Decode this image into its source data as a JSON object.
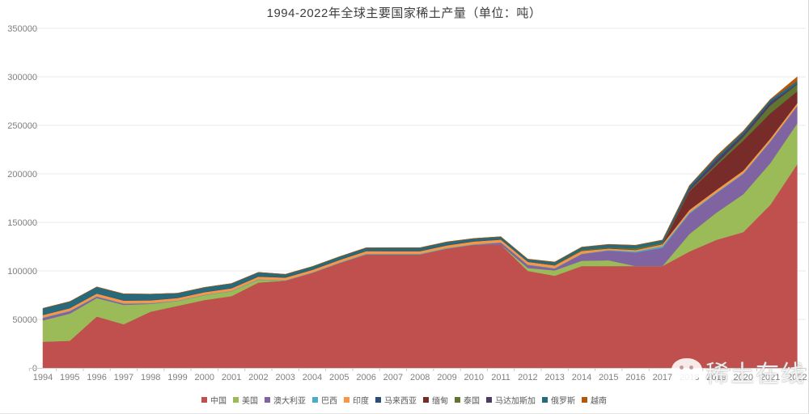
{
  "watermark": {
    "text": "稀土在线",
    "logo": "wechat-icon"
  },
  "chart_data": {
    "type": "area",
    "stacked": true,
    "title": "1994-2022年全球主要国家稀土产量（单位：吨）",
    "unit": "吨",
    "xlabel": "",
    "ylabel": "",
    "ylim": [
      0,
      350000
    ],
    "yticks": [
      0,
      50000,
      100000,
      150000,
      200000,
      250000,
      300000,
      350000
    ],
    "grid": true,
    "legend_position": "bottom",
    "categories": [
      1994,
      1995,
      1996,
      1997,
      1998,
      1999,
      2000,
      2001,
      2002,
      2003,
      2004,
      2005,
      2006,
      2007,
      2008,
      2009,
      2010,
      2011,
      2012,
      2013,
      2014,
      2015,
      2016,
      2017,
      2018,
      2019,
      2020,
      2021,
      2022
    ],
    "series": [
      {
        "name": "中国",
        "color": "#C0504D",
        "values": [
          27000,
          28000,
          53000,
          45000,
          58000,
          64000,
          70000,
          74000,
          88000,
          90000,
          98000,
          108000,
          117000,
          117000,
          117000,
          123000,
          127000,
          127000,
          100000,
          95000,
          105000,
          105000,
          105000,
          105000,
          120000,
          132000,
          140000,
          168000,
          210000
        ]
      },
      {
        "name": "美国",
        "color": "#9BBB59",
        "values": [
          22000,
          28000,
          19000,
          20000,
          8000,
          5000,
          5000,
          5000,
          3000,
          0,
          0,
          0,
          0,
          0,
          0,
          0,
          0,
          0,
          3000,
          5500,
          5400,
          5900,
          0,
          0,
          18000,
          28000,
          39000,
          43000,
          42000
        ]
      },
      {
        "name": "澳大利亚",
        "color": "#8064A2",
        "values": [
          2500,
          2500,
          1500,
          1200,
          500,
          0,
          0,
          0,
          0,
          0,
          0,
          0,
          0,
          0,
          0,
          0,
          0,
          2200,
          3200,
          2000,
          7000,
          10000,
          14000,
          19000,
          21000,
          20000,
          21000,
          22000,
          18000
        ]
      },
      {
        "name": "巴西",
        "color": "#4BACC6",
        "values": [
          400,
          400,
          400,
          400,
          400,
          400,
          400,
          400,
          400,
          400,
          400,
          500,
          700,
          650,
          650,
          650,
          550,
          250,
          300,
          300,
          300,
          700,
          1100,
          1700,
          1100,
          710,
          600,
          500,
          80
        ]
      },
      {
        "name": "印度",
        "color": "#F79646",
        "values": [
          2700,
          2700,
          2800,
          2800,
          2800,
          2700,
          2700,
          2700,
          2700,
          2700,
          2700,
          2700,
          2700,
          2700,
          2700,
          2700,
          2800,
          2800,
          2900,
          2900,
          2900,
          1500,
          1500,
          1800,
          2900,
          2900,
          2900,
          2900,
          2900
        ]
      },
      {
        "name": "马来西亚",
        "color": "#2C4D75",
        "values": [
          300,
          300,
          300,
          300,
          300,
          300,
          300,
          300,
          300,
          300,
          300,
          300,
          350,
          350,
          350,
          350,
          350,
          280,
          100,
          100,
          200,
          500,
          300,
          300,
          0,
          0,
          0,
          0,
          80
        ]
      },
      {
        "name": "缅甸",
        "color": "#772C2A",
        "values": [
          0,
          0,
          0,
          0,
          0,
          0,
          0,
          0,
          0,
          0,
          0,
          0,
          0,
          0,
          0,
          0,
          0,
          0,
          0,
          0,
          0,
          0,
          0,
          0,
          19000,
          25000,
          31000,
          26000,
          12000
        ]
      },
      {
        "name": "泰国",
        "color": "#5F7530",
        "values": [
          0,
          0,
          0,
          100,
          100,
          100,
          100,
          100,
          100,
          100,
          100,
          100,
          100,
          100,
          100,
          100,
          100,
          100,
          100,
          700,
          1100,
          800,
          1600,
          1300,
          1000,
          1900,
          3600,
          8200,
          7100
        ]
      },
      {
        "name": "马达加斯加",
        "color": "#4D3B62",
        "values": [
          0,
          0,
          0,
          0,
          0,
          0,
          0,
          0,
          0,
          0,
          0,
          0,
          0,
          0,
          0,
          0,
          0,
          0,
          0,
          0,
          0,
          0,
          0,
          0,
          2000,
          4000,
          2800,
          3200,
          960
        ]
      },
      {
        "name": "俄罗斯",
        "color": "#276A7C",
        "values": [
          6500,
          6500,
          6500,
          6500,
          6000,
          4500,
          4500,
          4500,
          4000,
          3000,
          3000,
          3000,
          3000,
          3000,
          3000,
          3000,
          2500,
          2500,
          2400,
          2500,
          2500,
          2800,
          2800,
          2600,
          2700,
          2700,
          2700,
          2600,
          2600
        ]
      },
      {
        "name": "越南",
        "color": "#B65708",
        "values": [
          0,
          0,
          0,
          0,
          0,
          0,
          0,
          0,
          0,
          0,
          0,
          0,
          0,
          200,
          200,
          200,
          200,
          220,
          220,
          220,
          200,
          250,
          220,
          200,
          400,
          1300,
          700,
          400,
          4300
        ]
      }
    ]
  }
}
